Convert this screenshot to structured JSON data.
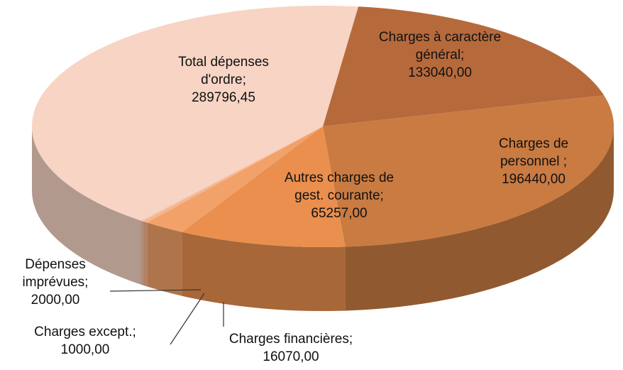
{
  "chart_data": {
    "type": "pie",
    "categories": [
      "Charges à caractère général;",
      "Charges de personnel ;",
      "Autres charges de gest. courante;",
      "Charges financières;",
      "Dépenses imprévues;",
      "Charges except.;",
      "Total dépenses d'ordre;"
    ],
    "values": [
      133040,
      196440,
      65257,
      16070,
      2000,
      1000,
      289796.45
    ],
    "value_labels": [
      "133040,00",
      "196440,00",
      "65257,00",
      "16070,00",
      "2000,00",
      "1000,00",
      "289796,45"
    ],
    "colors": [
      "#b66a3c",
      "#c97b42",
      "#ea8f4e",
      "#f2a168",
      "#f4b48e",
      "#f6c3a8",
      "#f7d4c4"
    ]
  }
}
